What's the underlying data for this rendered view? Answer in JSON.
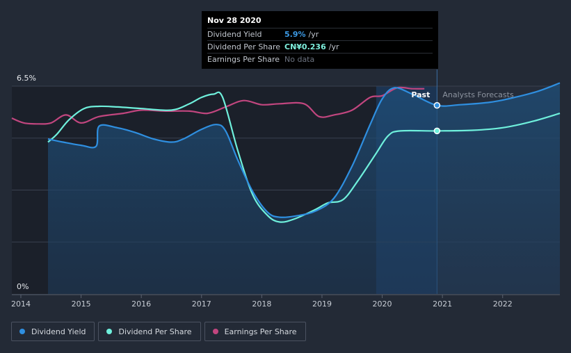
{
  "tooltip": {
    "date": "Nov 28 2020",
    "rows": [
      {
        "label": "Dividend Yield",
        "value": "5.9%",
        "unit": "/yr"
      },
      {
        "label": "Dividend Per Share",
        "value": "CN¥0.236",
        "unit": "/yr"
      },
      {
        "label": "Earnings Per Share",
        "value": "No data"
      }
    ]
  },
  "legend": [
    {
      "label": "Dividend Yield",
      "color": "#2f8fe0"
    },
    {
      "label": "Dividend Per Share",
      "color": "#6ff0dc"
    },
    {
      "label": "Earnings Per Share",
      "color": "#c2467f"
    }
  ],
  "chart_data": {
    "type": "line",
    "x_range": [
      2013.85,
      2022.95
    ],
    "ylim": [
      0,
      6.5
    ],
    "y_tick_labels": [
      "6.5%",
      "0%"
    ],
    "x_tick_labels": [
      "2014",
      "2015",
      "2016",
      "2017",
      "2018",
      "2019",
      "2020",
      "2021",
      "2022"
    ],
    "x_ticks": [
      2014,
      2015,
      2016,
      2017,
      2018,
      2019,
      2020,
      2021,
      2022
    ],
    "past_label": "Past",
    "forecast_label": "Analysts Forecasts",
    "divider_x": 2020.91,
    "highlight_start": 2019.9,
    "series": [
      {
        "name": "Dividend Yield",
        "color": "#2f8fe0",
        "points": [
          [
            2014.45,
            4.85
          ],
          [
            2014.7,
            4.75
          ],
          [
            2015.0,
            4.65
          ],
          [
            2015.25,
            4.62
          ],
          [
            2015.3,
            5.25
          ],
          [
            2015.6,
            5.2
          ],
          [
            2015.9,
            5.05
          ],
          [
            2016.2,
            4.85
          ],
          [
            2016.5,
            4.75
          ],
          [
            2016.7,
            4.85
          ],
          [
            2017.0,
            5.15
          ],
          [
            2017.25,
            5.3
          ],
          [
            2017.4,
            5.1
          ],
          [
            2017.6,
            4.2
          ],
          [
            2017.85,
            3.2
          ],
          [
            2018.1,
            2.55
          ],
          [
            2018.3,
            2.4
          ],
          [
            2018.6,
            2.45
          ],
          [
            2018.9,
            2.6
          ],
          [
            2019.2,
            3.0
          ],
          [
            2019.5,
            4.0
          ],
          [
            2019.8,
            5.3
          ],
          [
            2020.0,
            6.1
          ],
          [
            2020.2,
            6.45
          ],
          [
            2020.5,
            6.25
          ],
          [
            2020.91,
            5.9
          ],
          [
            2021.3,
            5.92
          ],
          [
            2021.8,
            6.0
          ],
          [
            2022.2,
            6.15
          ],
          [
            2022.6,
            6.35
          ],
          [
            2022.95,
            6.6
          ]
        ]
      },
      {
        "name": "Dividend Per Share",
        "color": "#6ff0dc",
        "points": [
          [
            2014.45,
            4.75
          ],
          [
            2014.6,
            5.0
          ],
          [
            2014.8,
            5.45
          ],
          [
            2015.05,
            5.8
          ],
          [
            2015.3,
            5.87
          ],
          [
            2015.6,
            5.85
          ],
          [
            2016.0,
            5.8
          ],
          [
            2016.5,
            5.75
          ],
          [
            2016.8,
            5.95
          ],
          [
            2017.0,
            6.15
          ],
          [
            2017.2,
            6.25
          ],
          [
            2017.35,
            6.15
          ],
          [
            2017.6,
            4.5
          ],
          [
            2017.85,
            3.1
          ],
          [
            2018.1,
            2.45
          ],
          [
            2018.3,
            2.25
          ],
          [
            2018.55,
            2.35
          ],
          [
            2018.9,
            2.65
          ],
          [
            2019.1,
            2.85
          ],
          [
            2019.35,
            2.95
          ],
          [
            2019.6,
            3.55
          ],
          [
            2019.9,
            4.4
          ],
          [
            2020.1,
            4.95
          ],
          [
            2020.3,
            5.1
          ],
          [
            2020.91,
            5.1
          ],
          [
            2021.5,
            5.12
          ],
          [
            2022.0,
            5.2
          ],
          [
            2022.5,
            5.4
          ],
          [
            2022.95,
            5.65
          ]
        ]
      },
      {
        "name": "Earnings Per Share",
        "color": "#c2467f",
        "points": [
          [
            2013.85,
            5.5
          ],
          [
            2014.05,
            5.35
          ],
          [
            2014.3,
            5.32
          ],
          [
            2014.5,
            5.35
          ],
          [
            2014.75,
            5.6
          ],
          [
            2015.0,
            5.35
          ],
          [
            2015.3,
            5.55
          ],
          [
            2015.7,
            5.65
          ],
          [
            2016.0,
            5.75
          ],
          [
            2016.4,
            5.72
          ],
          [
            2016.8,
            5.72
          ],
          [
            2017.1,
            5.65
          ],
          [
            2017.4,
            5.85
          ],
          [
            2017.7,
            6.05
          ],
          [
            2018.0,
            5.92
          ],
          [
            2018.3,
            5.95
          ],
          [
            2018.7,
            5.95
          ],
          [
            2018.95,
            5.55
          ],
          [
            2019.2,
            5.6
          ],
          [
            2019.5,
            5.75
          ],
          [
            2019.8,
            6.15
          ],
          [
            2020.0,
            6.2
          ],
          [
            2020.25,
            6.45
          ],
          [
            2020.5,
            6.42
          ],
          [
            2020.7,
            6.42
          ]
        ]
      }
    ]
  }
}
